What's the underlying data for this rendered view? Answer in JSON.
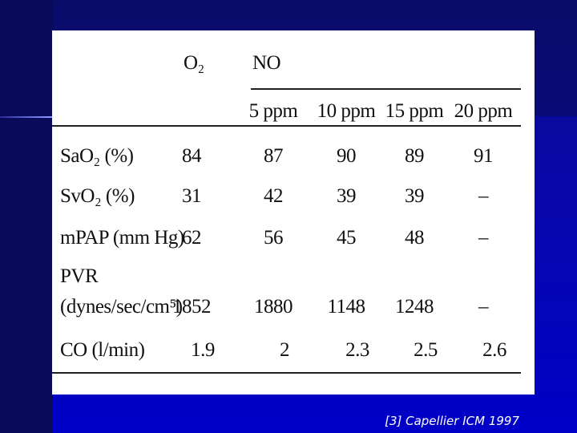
{
  "table": {
    "header": [
      "O₂",
      "NO"
    ],
    "subheader": [
      "5 ppm",
      "10 ppm",
      "15 ppm",
      "20 ppm"
    ],
    "rows": [
      {
        "label": [
          "SaO₂ (%)"
        ],
        "cells": [
          84,
          87,
          90,
          89,
          91
        ]
      },
      {
        "label": [
          "SvO₂ (%)"
        ],
        "cells": [
          31,
          42,
          39,
          39,
          "–"
        ]
      },
      {
        "label": [
          "mPAP (mm Hg)"
        ],
        "cells": [
          62,
          56,
          45,
          48,
          "–"
        ]
      },
      {
        "label": [
          "PVR",
          "(dynes/sec/cm⁵)"
        ],
        "cells": [
          1852,
          1880,
          1148,
          1248,
          "–"
        ]
      },
      {
        "label": [
          "CO (l/min)"
        ],
        "cells": [
          1.9,
          2,
          2.3,
          2.5,
          2.6
        ]
      }
    ]
  },
  "caption": "[3] Capellier ICM 1997"
}
